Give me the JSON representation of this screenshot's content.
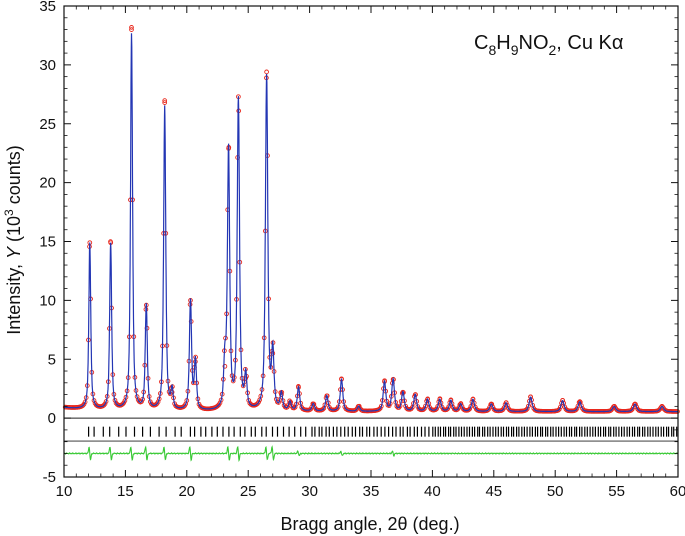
{
  "chart_data": {
    "type": "line",
    "title": "",
    "formula": {
      "parts": [
        {
          "text": "C",
          "sub": false
        },
        {
          "text": "8",
          "sub": true
        },
        {
          "text": "H",
          "sub": false
        },
        {
          "text": "9",
          "sub": true
        },
        {
          "text": "NO",
          "sub": false
        },
        {
          "text": "2",
          "sub": true
        },
        {
          "text": ", Cu Kα",
          "sub": false
        }
      ]
    },
    "xlabel": "Bragg angle, 2θ (deg.)",
    "ylabel": {
      "pre": "Intensity, ",
      "var": "Y",
      "mid": " (10",
      "sup": "3",
      "post": " counts)"
    },
    "xlim": [
      10,
      60
    ],
    "ylim": [
      -5,
      35
    ],
    "x_ticks": [
      "10",
      "15",
      "20",
      "25",
      "30",
      "35",
      "40",
      "45",
      "50",
      "55",
      "60"
    ],
    "y_ticks": [
      "-5",
      "0",
      "5",
      "10",
      "15",
      "20",
      "25",
      "30",
      "35"
    ],
    "grid": false,
    "legend": "none",
    "background": 0.55,
    "peaks": [
      {
        "x": 12.1,
        "y": 14.9
      },
      {
        "x": 13.8,
        "y": 14.9
      },
      {
        "x": 15.5,
        "y": 33.0
      },
      {
        "x": 16.7,
        "y": 9.6
      },
      {
        "x": 18.2,
        "y": 26.8
      },
      {
        "x": 18.8,
        "y": 2.2
      },
      {
        "x": 20.3,
        "y": 10.0
      },
      {
        "x": 20.7,
        "y": 4.8
      },
      {
        "x": 23.1,
        "y": 4.4
      },
      {
        "x": 23.4,
        "y": 22.9
      },
      {
        "x": 24.2,
        "y": 27.3
      },
      {
        "x": 24.8,
        "y": 3.4
      },
      {
        "x": 26.5,
        "y": 29.4
      },
      {
        "x": 27.0,
        "y": 5.5
      },
      {
        "x": 27.7,
        "y": 2.0
      },
      {
        "x": 28.4,
        "y": 1.3
      },
      {
        "x": 29.1,
        "y": 2.6
      },
      {
        "x": 30.3,
        "y": 1.2
      },
      {
        "x": 31.4,
        "y": 1.9
      },
      {
        "x": 32.6,
        "y": 3.3
      },
      {
        "x": 34.0,
        "y": 1.0
      },
      {
        "x": 36.1,
        "y": 3.1
      },
      {
        "x": 36.8,
        "y": 3.3
      },
      {
        "x": 37.6,
        "y": 2.2
      },
      {
        "x": 38.6,
        "y": 2.0
      },
      {
        "x": 39.6,
        "y": 1.6
      },
      {
        "x": 40.6,
        "y": 1.6
      },
      {
        "x": 41.5,
        "y": 1.5
      },
      {
        "x": 42.3,
        "y": 1.2
      },
      {
        "x": 43.3,
        "y": 1.6
      },
      {
        "x": 44.8,
        "y": 1.2
      },
      {
        "x": 46.0,
        "y": 1.3
      },
      {
        "x": 48.0,
        "y": 1.8
      },
      {
        "x": 50.6,
        "y": 1.5
      },
      {
        "x": 52.0,
        "y": 1.4
      },
      {
        "x": 54.8,
        "y": 1.0
      },
      {
        "x": 56.5,
        "y": 1.2
      },
      {
        "x": 58.7,
        "y": 1.0
      }
    ],
    "difference_peaks": [
      12.1,
      13.8,
      15.5,
      16.7,
      18.2,
      20.3,
      23.4,
      24.2,
      26.5,
      27.0,
      29.1,
      32.6,
      36.8
    ],
    "reflection_start": 12.0,
    "reflection_row_y": -1.15,
    "difference_baseline_y": -3.0,
    "hline_upper_y": 0.0,
    "hline_lower_y": -1.95,
    "series": [
      {
        "name": "",
        "role": "observed",
        "marker": "open-circle",
        "color": "#e8271c"
      },
      {
        "name": "",
        "role": "calculated",
        "color": "#2336b4"
      },
      {
        "name": "",
        "role": "reflections",
        "color": "#000000"
      },
      {
        "name": "",
        "role": "difference",
        "color": "#39c935"
      }
    ]
  }
}
